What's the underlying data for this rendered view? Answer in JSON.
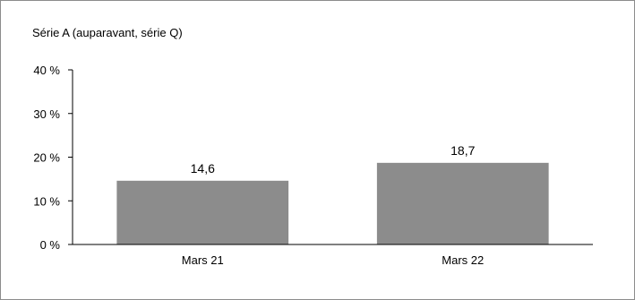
{
  "chart_data": {
    "type": "bar",
    "title": "Série A (auparavant, série Q)",
    "categories": [
      "Mars 21",
      "Mars 22"
    ],
    "values": [
      14.6,
      18.7
    ],
    "data_labels": [
      "14,6",
      "18,7"
    ],
    "ylim": [
      0,
      40
    ],
    "yticks": [
      0,
      10,
      20,
      30,
      40
    ],
    "ytick_labels": [
      "0 %",
      "10 %",
      "20 %",
      "30 %",
      "40 %"
    ],
    "xlabel": "",
    "ylabel": "",
    "grid": false,
    "legend": "none",
    "colors": {
      "bar": "#8c8c8c",
      "axis": "#000000",
      "frame": "#8c8c8c"
    }
  }
}
